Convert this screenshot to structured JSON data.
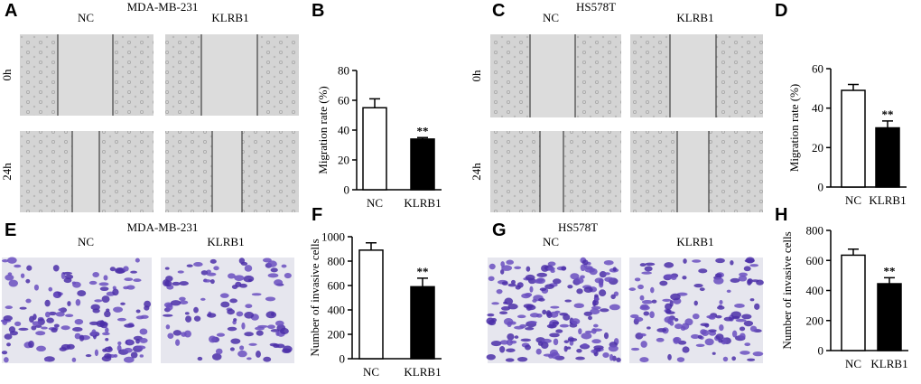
{
  "panels": [
    {
      "label": "A",
      "title": "MDA-MB-231",
      "columns": [
        "NC",
        "KLRB1"
      ],
      "rows": [
        "0h",
        "24h"
      ]
    },
    {
      "label": "C",
      "title": "HS578T",
      "columns": [
        "NC",
        "KLRB1"
      ],
      "rows": [
        "0h",
        "24h"
      ]
    },
    {
      "label": "E",
      "title": "MDA-MB-231",
      "columns": [
        "NC",
        "KLRB1"
      ]
    },
    {
      "label": "G",
      "title": "HS578T",
      "columns": [
        "NC",
        "KLRB1"
      ]
    }
  ],
  "chart_data": [
    {
      "type": "bar",
      "label": "B",
      "ylabel": "Migration rate (%)",
      "categories": [
        "NC",
        "KLRB1"
      ],
      "values": [
        55,
        34
      ],
      "errors": [
        6,
        1
      ],
      "value_annotations": [
        null,
        "**"
      ],
      "colors": [
        "#ffffff",
        "#000000"
      ],
      "ylim": [
        0,
        80
      ],
      "yticks": [
        0,
        20,
        40,
        60,
        80
      ]
    },
    {
      "type": "bar",
      "label": "D",
      "ylabel": "Migration rate (%)",
      "categories": [
        "NC",
        "KLRB1"
      ],
      "values": [
        49,
        30
      ],
      "errors": [
        3,
        3.5
      ],
      "value_annotations": [
        null,
        "**"
      ],
      "colors": [
        "#ffffff",
        "#000000"
      ],
      "ylim": [
        0,
        60
      ],
      "yticks": [
        0,
        20,
        40,
        60
      ]
    },
    {
      "type": "bar",
      "label": "F",
      "ylabel": "Number of invasive cells",
      "categories": [
        "NC",
        "KLRB1"
      ],
      "values": [
        890,
        590
      ],
      "errors": [
        60,
        70
      ],
      "value_annotations": [
        null,
        "**"
      ],
      "colors": [
        "#ffffff",
        "#000000"
      ],
      "ylim": [
        0,
        1000
      ],
      "yticks": [
        0,
        200,
        400,
        600,
        800,
        1000
      ]
    },
    {
      "type": "bar",
      "label": "H",
      "ylabel": "Number of invasive cells",
      "categories": [
        "NC",
        "KLRB1"
      ],
      "values": [
        635,
        445
      ],
      "errors": [
        40,
        40
      ],
      "value_annotations": [
        null,
        "**"
      ],
      "colors": [
        "#ffffff",
        "#000000"
      ],
      "ylim": [
        0,
        800
      ],
      "yticks": [
        0,
        200,
        400,
        600,
        800
      ]
    }
  ]
}
